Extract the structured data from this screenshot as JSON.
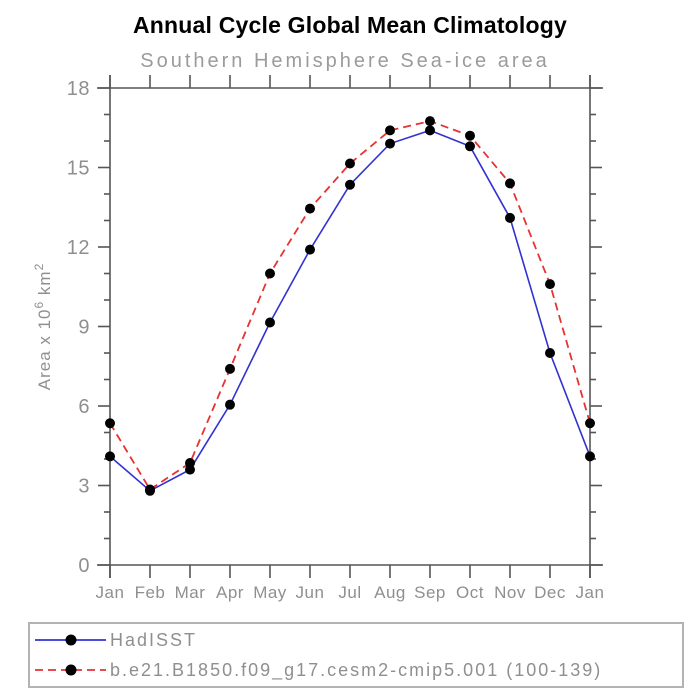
{
  "title": "Annual Cycle Global Mean Climatology",
  "subtitle": "Southern Hemisphere Sea-ice area",
  "colors": {
    "title_text": "#000000",
    "subtitle_text": "#9b9b9b",
    "axis": "#555555",
    "tick_label": "#8f8f8f",
    "marker": "#000000",
    "hadisst_line": "#3232d2",
    "cesm_line": "#e63232",
    "legend_border": "#b3b3b3",
    "legend_text": "#8f8f8f"
  },
  "chart_data": {
    "type": "line",
    "title": "Annual Cycle Global Mean Climatology",
    "subtitle": "Southern Hemisphere Sea-ice area",
    "categories": [
      "Jan",
      "Feb",
      "Mar",
      "Apr",
      "May",
      "Jun",
      "Jul",
      "Aug",
      "Sep",
      "Oct",
      "Nov",
      "Dec",
      "Jan"
    ],
    "series": [
      {
        "name": "HadISST",
        "line_style": "solid",
        "color_key": "hadisst_line",
        "values": [
          4.1,
          2.8,
          3.6,
          6.05,
          9.15,
          11.9,
          14.35,
          15.9,
          16.4,
          15.8,
          13.1,
          8.0,
          4.1
        ]
      },
      {
        "name": "b.e21.B1850.f09_g17.cesm2-cmip5.001 (100-139)",
        "line_style": "dashed",
        "color_key": "cesm_line",
        "values": [
          5.35,
          2.85,
          3.85,
          7.4,
          11.0,
          13.45,
          15.15,
          16.4,
          16.75,
          16.2,
          14.4,
          10.6,
          5.35
        ]
      }
    ],
    "ylabel_parts": {
      "prefix": "Area x 10",
      "exp": "6",
      "unit": " km",
      "unit_exp": "2"
    },
    "yticks": [
      0,
      3,
      6,
      9,
      12,
      15,
      18
    ],
    "minor_tick_step": 1,
    "ylim": [
      0,
      18
    ],
    "grid": false,
    "marker": "filled-circle",
    "legend_position": "bottom"
  }
}
